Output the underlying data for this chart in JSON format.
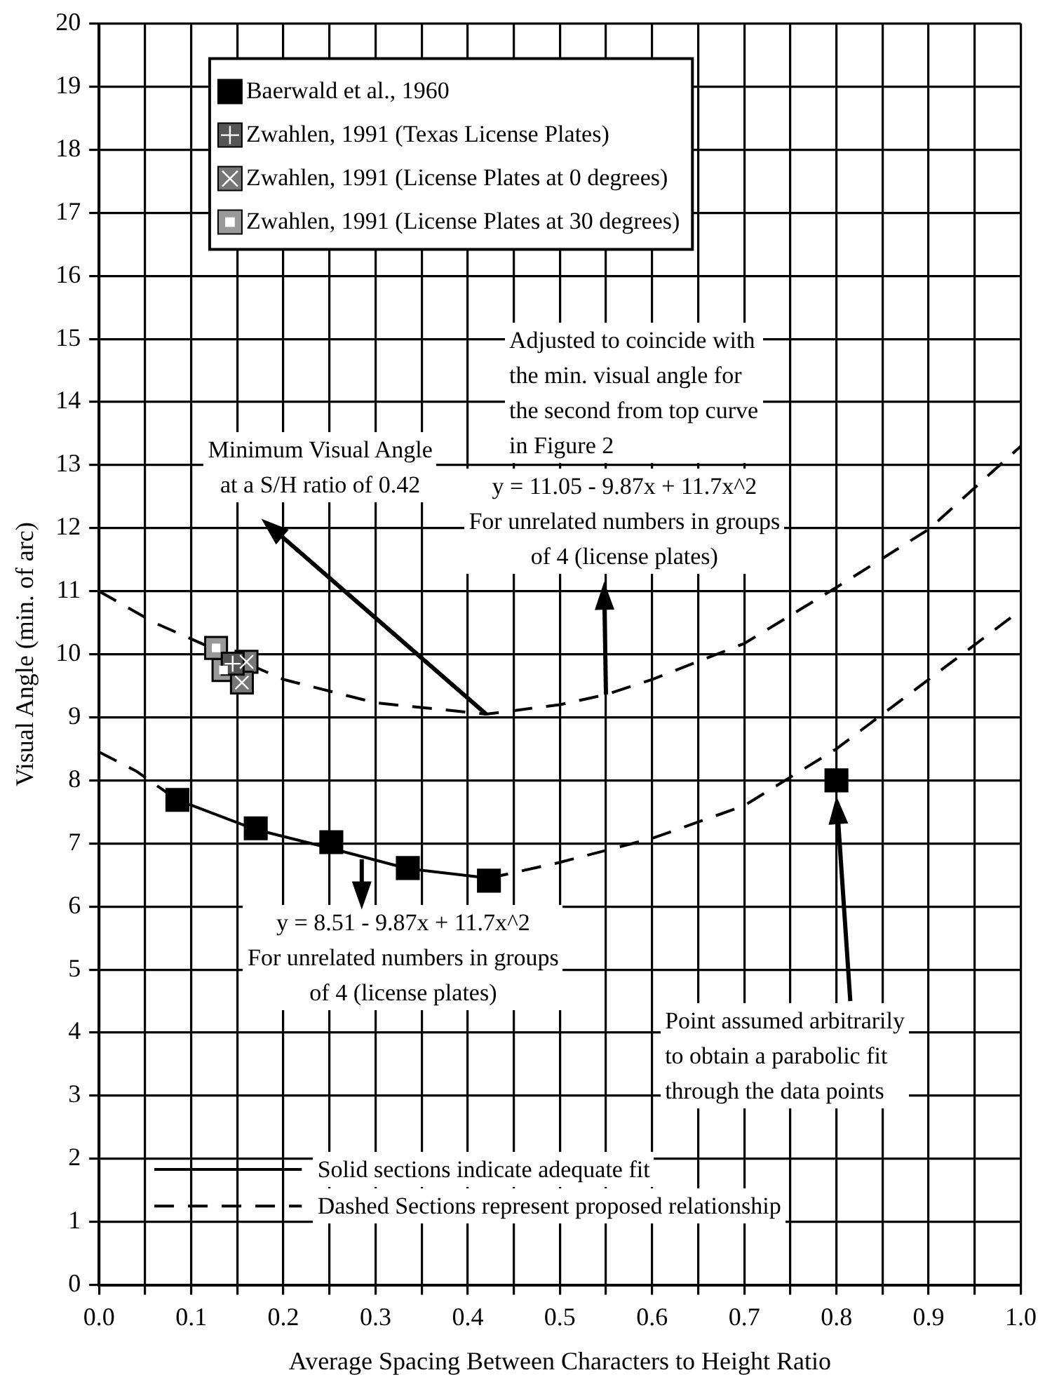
{
  "chart_data": {
    "type": "scatter",
    "xlabel": "Average Spacing Between Characters to Height Ratio",
    "ylabel": "Visual Angle (min. of arc)",
    "xlim": [
      0,
      1
    ],
    "ylim": [
      0,
      20
    ],
    "xticks": [
      {
        "value": 0,
        "label": "0.0"
      },
      {
        "value": 0.05,
        "label": null
      },
      0.1,
      {
        "value": 0.15,
        "label": null
      },
      0.2,
      {
        "value": 0.25,
        "label": null
      },
      0.3,
      {
        "value": 0.35,
        "label": null
      },
      0.4,
      {
        "value": 0.45,
        "label": null
      },
      0.5,
      {
        "value": 0.55,
        "label": null
      },
      0.6,
      {
        "value": 0.65,
        "label": null
      },
      0.7,
      {
        "value": 0.75,
        "label": null
      },
      0.8,
      {
        "value": 0.85,
        "label": null
      },
      0.9,
      {
        "value": 0.95,
        "label": null
      },
      {
        "value": 1,
        "label": "1.0"
      }
    ],
    "yticks": [
      0,
      1,
      2,
      3,
      4,
      5,
      6,
      7,
      8,
      9,
      10,
      11,
      12,
      13,
      14,
      15,
      16,
      17,
      18,
      19,
      20
    ],
    "grid": true,
    "legend": "top",
    "marker": "square",
    "series": [
      {
        "name": "Baerwald et al., 1960",
        "color": "#000000",
        "x": [
          0.085,
          0.17,
          0.252,
          0.335,
          0.423,
          0.8
        ],
        "values": [
          7.69,
          7.24,
          7.02,
          6.61,
          6.41,
          8.0
        ]
      },
      {
        "name": "Zwahlen, 1991 (Texas License Plates)",
        "color": "#555555",
        "x": [
          0.145
        ],
        "values": [
          9.85
        ]
      },
      {
        "name": "Zwahlen, 1991 (License Plates at 0 degrees)",
        "color": "#777777",
        "x": [
          0.16,
          0.155
        ],
        "values": [
          9.88,
          9.55
        ]
      },
      {
        "name": "Zwahlen, 1991 (License Plates at 30 degrees)",
        "color": "#999999",
        "x": [
          0.127,
          0.135
        ],
        "values": [
          10.1,
          9.75
        ]
      },
      {
        "type": "line",
        "color": "#000000",
        "marker": "none",
        "line_style": "dashed",
        "x": [
          0,
          0.04,
          0.085
        ],
        "values": [
          8.45,
          8.15,
          7.69
        ]
      },
      {
        "type": "line",
        "color": "#000000",
        "marker": "none",
        "line_style": "solid",
        "x": [
          0.085,
          0.17,
          0.252,
          0.335,
          0.423
        ],
        "values": [
          7.69,
          7.22,
          6.92,
          6.6,
          6.45
        ]
      },
      {
        "type": "line",
        "color": "#000000",
        "marker": "none",
        "line_style": "dashed",
        "x": [
          0.423,
          0.5,
          0.6,
          0.7,
          0.8,
          0.9,
          1.0
        ],
        "values": [
          6.45,
          6.7,
          7.08,
          7.6,
          8.5,
          9.6,
          10.7
        ]
      },
      {
        "type": "line",
        "color": "#000000",
        "marker": "none",
        "line_style": "dashed",
        "x": [
          0,
          0.06,
          0.2,
          0.3,
          0.42,
          0.5,
          0.55,
          0.6,
          0.7,
          0.8,
          0.9,
          1.0
        ],
        "values": [
          11.0,
          10.5,
          9.6,
          9.23,
          9.05,
          9.2,
          9.36,
          9.6,
          10.17,
          11.06,
          11.98,
          13.3
        ]
      }
    ],
    "annotations": [
      "Minimum Visual Angle\nat a S/H ratio of 0.42",
      "Adjusted to coincide with\nthe min. visual angle for\nthe second from top curve\nin Figure 2",
      "y = 11.05 - 9.87x + 11.7x^2\nFor unrelated numbers in groups\nof 4 (license plates)",
      {
        "text": "y = 8.51 - 9.87x + 11.7x^2\nFor unrelated numbers in groups\nof 4 (license plates)",
        "x": 0.285,
        "y": 6.75
      },
      "Point assumed arbitrarily\nto obtain a parabolic fit\nthrough the data points",
      "Solid sections indicate adequate fit",
      "Dashed Sections represent proposed relationship"
    ]
  }
}
